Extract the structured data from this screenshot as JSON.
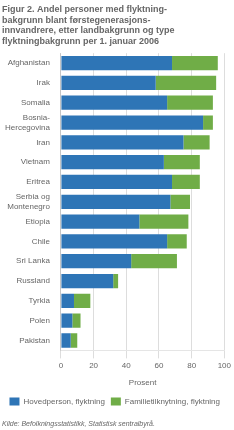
{
  "chart_data": {
    "type": "bar",
    "orientation": "horizontal",
    "stacked": true,
    "title": "Figur 2. Andel personer med flyktning-\nbakgrunn blant førstegenerasjons-\ninnvandrere, etter landbakgrunn og type\nflyktningbakgrunn per 1. januar 2006",
    "categories": [
      "Afghanistan",
      "Irak",
      "Somalia",
      "Bosnia-\nHercegovina",
      "Iran",
      "Vietnam",
      "Eritrea",
      "Serbia og\nMontenegro",
      "Etiopia",
      "Chile",
      "Sri Lanka",
      "Russland",
      "Tyrkia",
      "Polen",
      "Pakistan"
    ],
    "series": [
      {
        "name": "Hovedperson,\nflyktning",
        "color": "#2E75B6",
        "values": [
          68,
          58,
          65,
          87,
          75,
          63,
          68,
          67,
          48,
          65,
          43,
          32,
          8,
          7,
          6
        ]
      },
      {
        "name": "Familietilknytning,\nflyktning",
        "color": "#70AD47",
        "values": [
          28,
          37,
          28,
          6,
          16,
          22,
          17,
          12,
          30,
          12,
          28,
          3,
          10,
          5,
          4
        ]
      }
    ],
    "xlabel": "Prosent",
    "xlim": [
      0,
      100
    ],
    "xticks": [
      0,
      20,
      40,
      60,
      80,
      100
    ],
    "grid": true,
    "legend": "lower right",
    "source": "Kilde: Befolkningsstatistikk, Statistisk sentralbyrå."
  }
}
